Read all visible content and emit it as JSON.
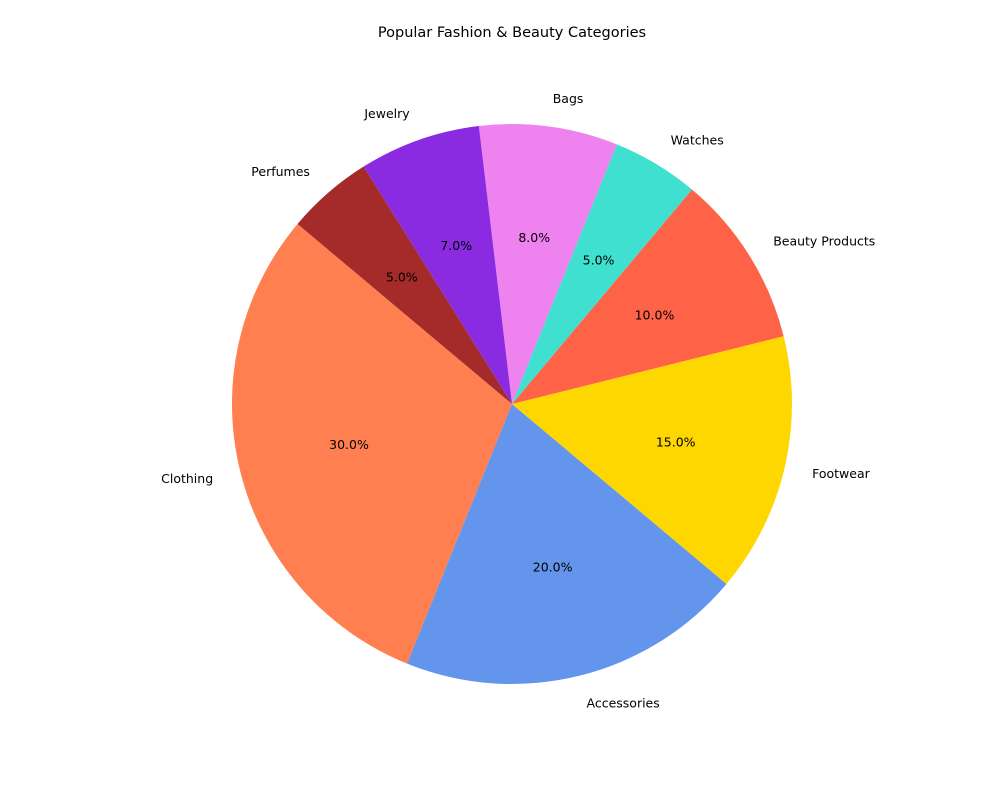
{
  "chart_data": {
    "type": "pie",
    "title": "Popular Fashion & Beauty Categories",
    "start_angle_deg": 140,
    "direction": "counterclockwise",
    "slices": [
      {
        "label": "Clothing",
        "value": 30,
        "pct_label": "30.0%",
        "color": "#FF7F50"
      },
      {
        "label": "Accessories",
        "value": 20,
        "pct_label": "20.0%",
        "color": "#6495ED"
      },
      {
        "label": "Footwear",
        "value": 15,
        "pct_label": "15.0%",
        "color": "#FFD700"
      },
      {
        "label": "Beauty Products",
        "value": 10,
        "pct_label": "10.0%",
        "color": "#FF6347"
      },
      {
        "label": "Watches",
        "value": 5,
        "pct_label": "5.0%",
        "color": "#40E0D0"
      },
      {
        "label": "Bags",
        "value": 8,
        "pct_label": "8.0%",
        "color": "#EE82EE"
      },
      {
        "label": "Jewelry",
        "value": 7,
        "pct_label": "7.0%",
        "color": "#8A2BE2"
      },
      {
        "label": "Perfumes",
        "value": 5,
        "pct_label": "5.0%",
        "color": "#A52A2A"
      }
    ]
  }
}
